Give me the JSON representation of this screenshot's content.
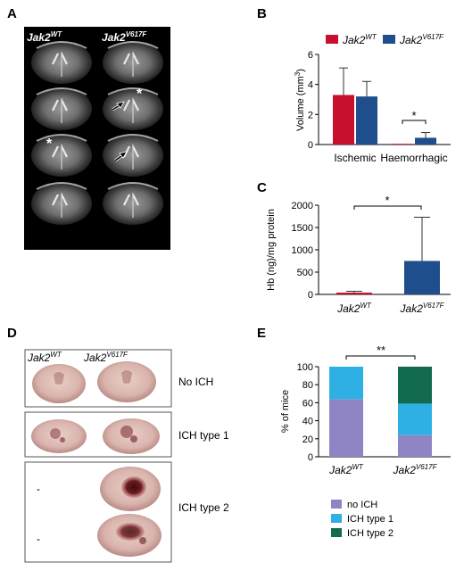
{
  "panels": {
    "a": {
      "letter": "A",
      "col_labels": {
        "base": [
          "Jak2",
          "Jak2"
        ],
        "sup": [
          "WT",
          "V617F"
        ]
      }
    },
    "b": {
      "letter": "B",
      "legend": [
        {
          "base": "Jak2",
          "sup": "WT",
          "color": "#c8102e"
        },
        {
          "base": "Jak2",
          "sup": "V617F",
          "color": "#1f4e8c"
        }
      ],
      "sig": "*"
    },
    "c": {
      "letter": "C",
      "sig": "*"
    },
    "d": {
      "letter": "D",
      "col_labels": {
        "base": [
          "Jak2",
          "Jak2"
        ],
        "sup": [
          "WT",
          "V617F"
        ]
      },
      "rows": [
        "No ICH",
        "ICH type 1",
        "ICH type 2"
      ],
      "dash": "-"
    },
    "e": {
      "letter": "E",
      "sig": "**"
    }
  },
  "chart_data": [
    {
      "panel": "B",
      "type": "bar",
      "ylabel": "Volume (mm³)",
      "categories": [
        "Ischemic",
        "Haemorrhagic"
      ],
      "series": [
        {
          "name": "Jak2 WT",
          "values": [
            3.3,
            0.05
          ],
          "errors": [
            1.8,
            0.0
          ]
        },
        {
          "name": "Jak2 V617F",
          "values": [
            3.2,
            0.45
          ],
          "errors": [
            1.0,
            0.35
          ]
        }
      ],
      "ylim": [
        0,
        6
      ],
      "yticks": [
        "0",
        "2",
        "4",
        "6"
      ]
    },
    {
      "panel": "C",
      "type": "bar",
      "ylabel": "Hb (ng)/mg protein",
      "categories": [
        "Jak2 WT",
        "Jak2 V617F"
      ],
      "category_labels": [
        {
          "base": "Jak2",
          "sup": "WT"
        },
        {
          "base": "Jak2",
          "sup": "V617F"
        }
      ],
      "values": [
        40,
        750
      ],
      "errors": [
        30,
        980
      ],
      "ylim": [
        0,
        2000
      ],
      "yticks": [
        "0",
        "500",
        "1000",
        "1500",
        "2000"
      ]
    },
    {
      "panel": "E",
      "type": "bar",
      "stacked": true,
      "ylabel": "% of mice",
      "categories": [
        "Jak2 WT",
        "Jak2 V617F"
      ],
      "category_labels": [
        {
          "base": "Jak2",
          "sup": "WT"
        },
        {
          "base": "Jak2",
          "sup": "V617F"
        }
      ],
      "series": [
        {
          "name": "no ICH",
          "values": [
            64,
            24
          ],
          "color": "#9085c4"
        },
        {
          "name": "ICH type 1",
          "values": [
            36,
            35
          ],
          "color": "#2eb0e4"
        },
        {
          "name": "ICH type 2",
          "values": [
            0,
            41
          ],
          "color": "#126b4f"
        }
      ],
      "ylim": [
        0,
        100
      ],
      "yticks": [
        "0",
        "20",
        "40",
        "60",
        "80",
        "100"
      ]
    }
  ]
}
